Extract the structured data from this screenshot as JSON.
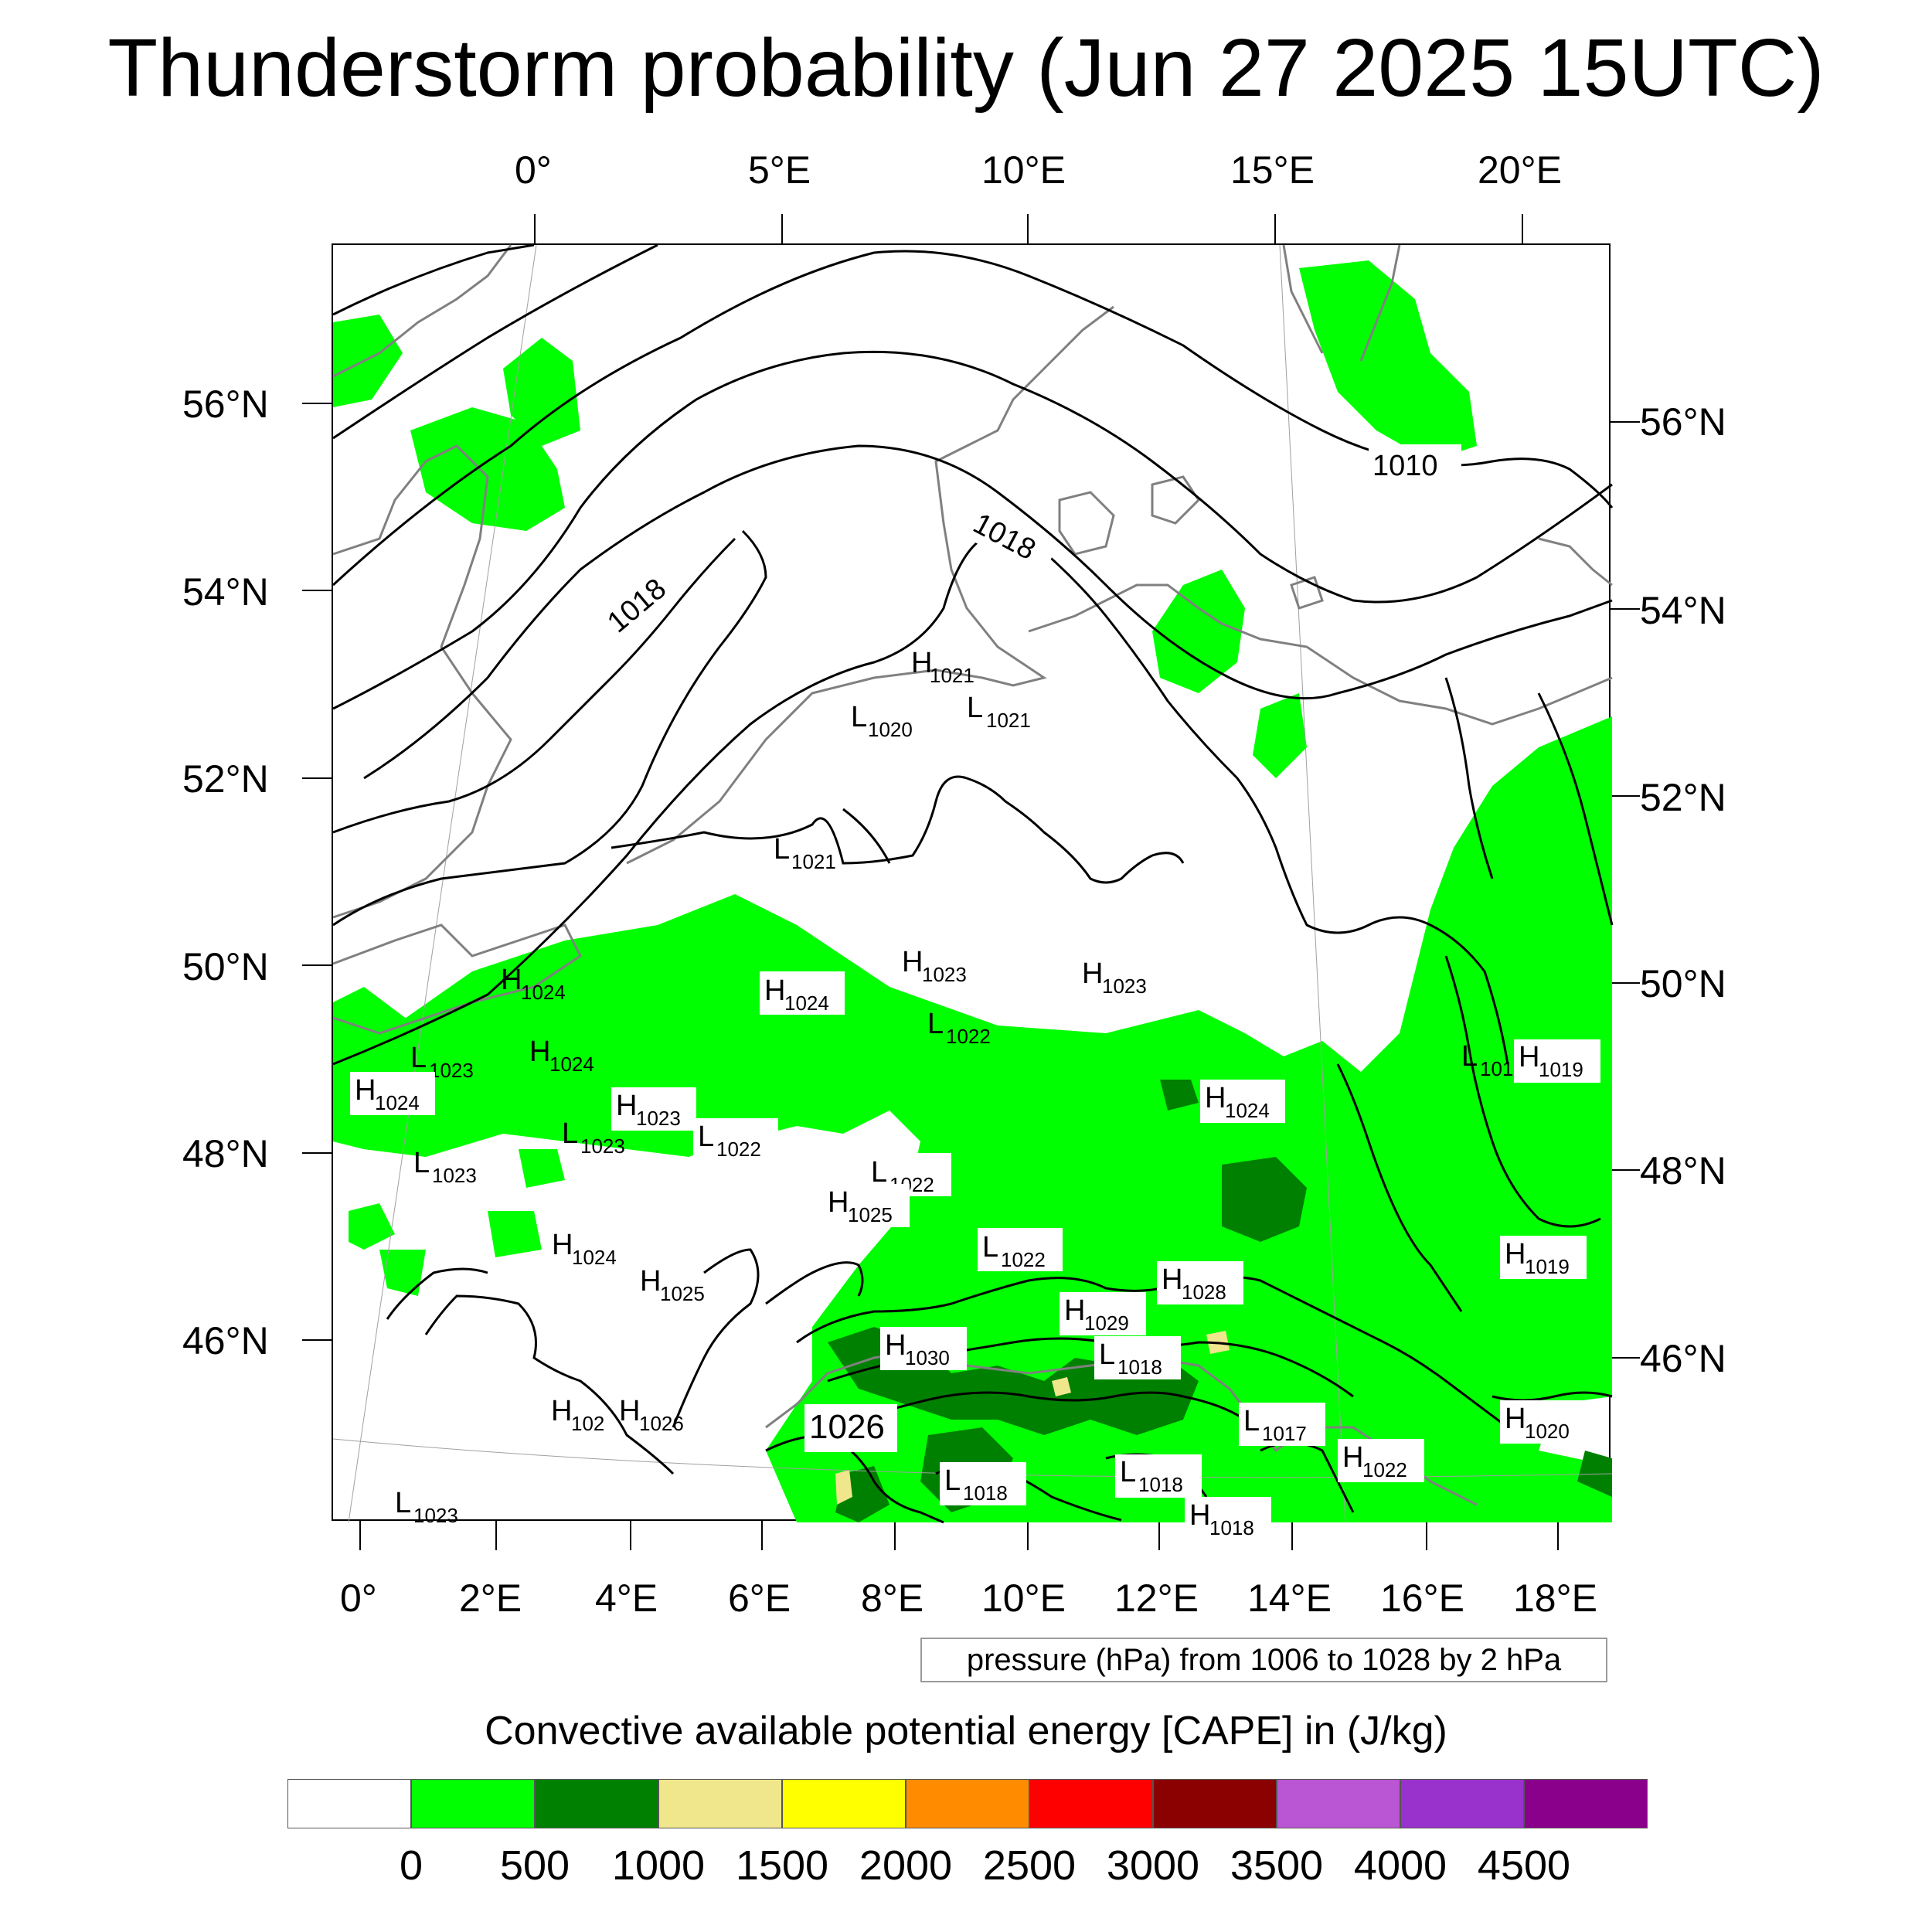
{
  "title": "Thunderstorm probability (Jun 27 2025 15UTC)",
  "top_axis_labels": [
    "0°",
    "5°E",
    "10°E",
    "15°E",
    "20°E"
  ],
  "bottom_axis_labels": [
    "0°",
    "2°E",
    "4°E",
    "6°E",
    "8°E",
    "10°E",
    "12°E",
    "14°E",
    "16°E",
    "18°E"
  ],
  "left_axis_labels": [
    "56°N",
    "54°N",
    "52°N",
    "50°N",
    "48°N",
    "46°N"
  ],
  "right_axis_labels": [
    "56°N",
    "54°N",
    "52°N",
    "50°N",
    "48°N",
    "46°N"
  ],
  "pressure_labels": [
    {
      "letter": "H",
      "value": "1021"
    },
    {
      "letter": "L",
      "value": "1021"
    },
    {
      "letter": "L",
      "value": "1020"
    },
    {
      "letter": "L",
      "value": "1021"
    },
    {
      "letter": "H",
      "value": "1024"
    },
    {
      "letter": "H",
      "value": "1024"
    },
    {
      "letter": "H",
      "value": "1023"
    },
    {
      "letter": "H",
      "value": "1023"
    },
    {
      "letter": "L",
      "value": "1022"
    },
    {
      "letter": "L",
      "value": "1023"
    },
    {
      "letter": "H",
      "value": "1024"
    },
    {
      "letter": "H",
      "value": "1024"
    },
    {
      "letter": "H",
      "value": "1023"
    },
    {
      "letter": "L",
      "value": "1022"
    },
    {
      "letter": "L",
      "value": "1023"
    },
    {
      "letter": "L",
      "value": "1023"
    },
    {
      "letter": "H",
      "value": "1024"
    },
    {
      "letter": "L",
      "value": "101"
    },
    {
      "letter": "H",
      "value": "1019"
    },
    {
      "letter": "L",
      "value": "1022"
    },
    {
      "letter": "H",
      "value": "1025"
    },
    {
      "letter": "L",
      "value": "1022"
    },
    {
      "letter": "H",
      "value": "1024"
    },
    {
      "letter": "H",
      "value": "1025"
    },
    {
      "letter": "H",
      "value": "1028"
    },
    {
      "letter": "H",
      "value": "1019"
    },
    {
      "letter": "H",
      "value": "1029"
    },
    {
      "letter": "H",
      "value": "1030"
    },
    {
      "letter": "L",
      "value": "1018"
    },
    {
      "letter": "H",
      "value": "102"
    },
    {
      "letter": "H",
      "value": "1026"
    },
    {
      "letter": "L",
      "value": "1017"
    },
    {
      "letter": "H",
      "value": "1020"
    },
    {
      "letter": "H",
      "value": "1022"
    },
    {
      "letter": "L",
      "value": "1018"
    },
    {
      "letter": "L",
      "value": "1018"
    },
    {
      "letter": "L",
      "value": "1023"
    },
    {
      "letter": "H",
      "value": "1018"
    }
  ],
  "isobar_labels": [
    "1010",
    "1018",
    "1018",
    "1026"
  ],
  "contour_note": "pressure (hPa) from 1006 to 1028 by 2 hPa",
  "colorbar_title": "Convective available potential energy [CAPE] in (J/kg)",
  "colorbar_colors": [
    "#ffffff",
    "#00ff00",
    "#008000",
    "#f0e68c",
    "#ffff00",
    "#ff8c00",
    "#ff0000",
    "#8b0000",
    "#ba55d3",
    "#9932cc",
    "#8b008b"
  ],
  "colorbar_labels": [
    "0",
    "500",
    "1000",
    "1500",
    "2000",
    "2500",
    "3000",
    "3500",
    "4000",
    "4500"
  ],
  "land_color": "#808080",
  "isobar_color": "#000000"
}
